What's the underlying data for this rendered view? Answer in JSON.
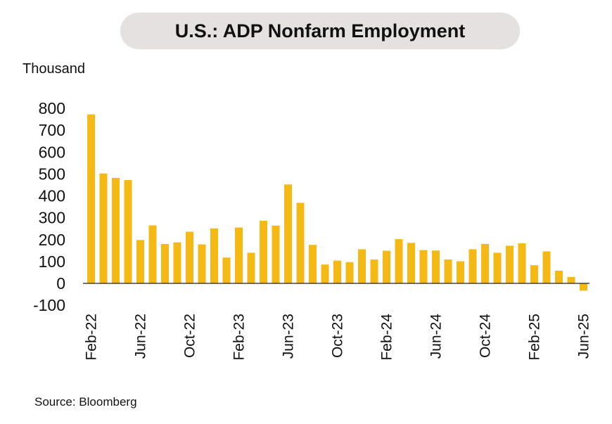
{
  "header": {
    "title": "U.S.: ADP Nonfarm Employment"
  },
  "unit_label": "Thousand",
  "source": "Source: Bloomberg",
  "colors": {
    "bar": "#f5b915",
    "axis": "#222222"
  },
  "chart_data": {
    "type": "bar",
    "title": "U.S.: ADP Nonfarm Employment",
    "ylabel": "Thousand",
    "xlabel": "",
    "ylim": [
      -100,
      800
    ],
    "yticks": [
      800,
      700,
      600,
      500,
      400,
      300,
      200,
      100,
      0,
      -100
    ],
    "x_tick_labels": [
      "Feb-22",
      "Jun-22",
      "Oct-22",
      "Feb-23",
      "Jun-23",
      "Oct-23",
      "Feb-24",
      "Jun-24",
      "Oct-24",
      "Feb-25",
      "Jun-25"
    ],
    "categories": [
      "Feb-22",
      "Mar-22",
      "Apr-22",
      "May-22",
      "Jun-22",
      "Jul-22",
      "Aug-22",
      "Sep-22",
      "Oct-22",
      "Nov-22",
      "Dec-22",
      "Jan-23",
      "Feb-23",
      "Mar-23",
      "Apr-23",
      "May-23",
      "Jun-23",
      "Jul-23",
      "Aug-23",
      "Sep-23",
      "Oct-23",
      "Nov-23",
      "Dec-23",
      "Jan-24",
      "Feb-24",
      "Mar-24",
      "Apr-24",
      "May-24",
      "Jun-24",
      "Jul-24",
      "Aug-24",
      "Sep-24",
      "Oct-24",
      "Nov-24",
      "Dec-24",
      "Jan-25",
      "Feb-25",
      "Mar-25",
      "Apr-25",
      "May-25",
      "Jun-25"
    ],
    "values": [
      772,
      502,
      482,
      472,
      198,
      265,
      180,
      187,
      236,
      178,
      251,
      118,
      255,
      140,
      286,
      264,
      452,
      368,
      176,
      86,
      104,
      97,
      156,
      109,
      149,
      202,
      185,
      152,
      150,
      109,
      101,
      156,
      180,
      140,
      172,
      183,
      83,
      146,
      58,
      29,
      -33
    ],
    "grid": false,
    "legend": "none"
  }
}
